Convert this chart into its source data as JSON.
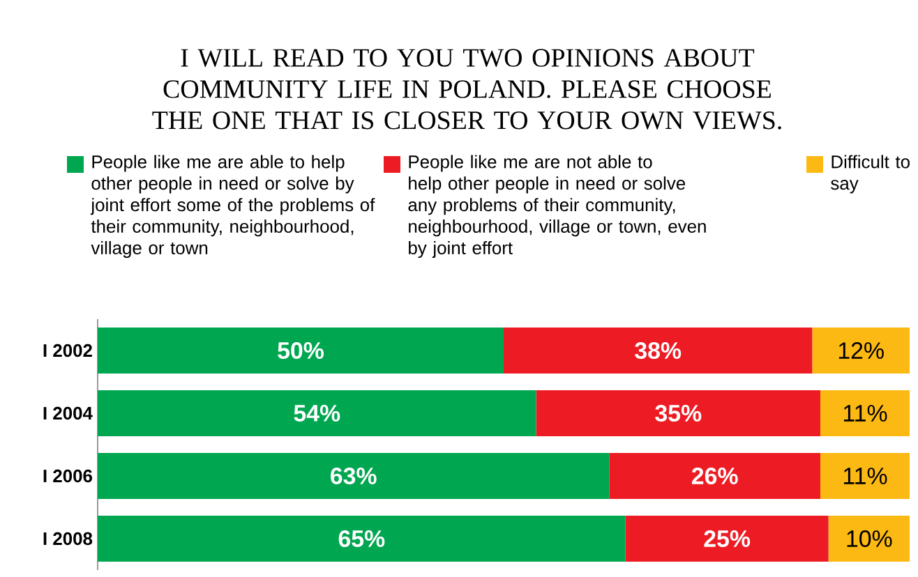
{
  "chart_data": {
    "type": "bar",
    "orientation": "horizontal",
    "stacked": true,
    "legend": "top",
    "tick_labels": "y",
    "title": "I WILL READ TO YOU TWO OPINIONS ABOUT COMMUNITY LIFE IN POLAND. PLEASE CHOOSE THE ONE THAT IS CLOSER TO YOUR OWN VIEWS.",
    "categories": [
      "I 2002",
      "I 2004",
      "I 2006",
      "I 2008"
    ],
    "series": [
      {
        "name": "People like me are able to help other people in need or solve by joint effort some of the problems of their community, neighbourhood, village or town",
        "color": "#00a650",
        "values": [
          50,
          54,
          63,
          65
        ],
        "value_labels": [
          "50%",
          "54%",
          "63%",
          "65%"
        ]
      },
      {
        "name": "People like me are not able to help other people in need or solve any problems of their community, neighbourhood, village or town, even by joint effort",
        "color": "#ed1c24",
        "values": [
          38,
          35,
          26,
          25
        ],
        "value_labels": [
          "38%",
          "35%",
          "26%",
          "25%"
        ]
      },
      {
        "name": "Difficult to say",
        "color": "#fdb913",
        "values": [
          12,
          11,
          11,
          10
        ],
        "value_labels": [
          "12%",
          "11%",
          "11%",
          "10%"
        ]
      }
    ]
  }
}
